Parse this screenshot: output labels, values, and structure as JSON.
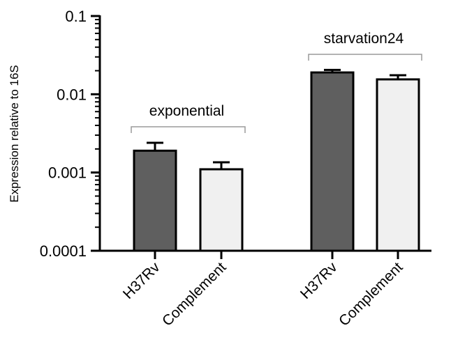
{
  "chart_data": {
    "type": "bar",
    "title": "",
    "xlabel": "",
    "ylabel": "Expression relative to 16S",
    "yscale": "log",
    "ylim": [
      0.0001,
      0.1
    ],
    "yticks": [
      {
        "value": 0.1,
        "label": "0.1"
      },
      {
        "value": 0.01,
        "label": "0.01"
      },
      {
        "value": 0.001,
        "label": "0.001"
      },
      {
        "value": 0.0001,
        "label": "0.0001"
      }
    ],
    "grid": false,
    "groups": [
      {
        "label": "exponential",
        "bars": [
          {
            "category": "H37Rv",
            "value": 0.0019,
            "error_upper": 0.0024,
            "color": "#5f5f5f"
          },
          {
            "category": "Complement",
            "value": 0.0011,
            "error_upper": 0.00135,
            "color": "#f0f0f0"
          }
        ]
      },
      {
        "label": "starvation24",
        "bars": [
          {
            "category": "H37Rv",
            "value": 0.019,
            "error_upper": 0.0205,
            "color": "#5f5f5f"
          },
          {
            "category": "Complement",
            "value": 0.0155,
            "error_upper": 0.0175,
            "color": "#f0f0f0"
          }
        ]
      }
    ]
  }
}
